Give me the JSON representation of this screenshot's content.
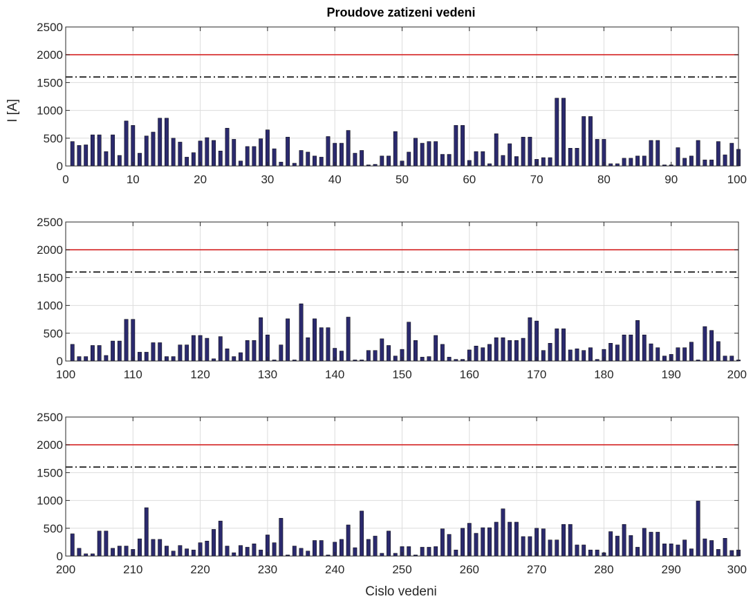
{
  "chart_data": {
    "type": "bar",
    "title": "Proudove zatizeni vedeni",
    "ylabel": "I [A]",
    "xlabel": "Cislo vedeni",
    "grid": true,
    "bar_color": "#2b2a6e",
    "reference_lines": [
      {
        "value": 2000,
        "style": "solid",
        "color": "#d42222"
      },
      {
        "value": 1600,
        "style": "dash-dot",
        "color": "#000000"
      }
    ],
    "panels": [
      {
        "xlim": [
          0,
          100
        ],
        "ylim": [
          0,
          2500
        ],
        "xticks": [
          "0",
          "10",
          "20",
          "30",
          "40",
          "50",
          "60",
          "70",
          "80",
          "90",
          "100"
        ],
        "yticks": [
          "0",
          "500",
          "1000",
          "1500",
          "2000",
          "2500"
        ],
        "x_start": 1,
        "values": [
          440,
          370,
          380,
          560,
          560,
          260,
          560,
          190,
          810,
          730,
          230,
          540,
          610,
          860,
          860,
          500,
          430,
          160,
          240,
          450,
          510,
          460,
          270,
          680,
          480,
          90,
          350,
          350,
          490,
          650,
          310,
          70,
          520,
          50,
          280,
          250,
          180,
          160,
          530,
          410,
          410,
          640,
          230,
          280,
          20,
          30,
          180,
          180,
          620,
          90,
          250,
          500,
          410,
          440,
          440,
          210,
          210,
          730,
          730,
          100,
          260,
          260,
          40,
          580,
          190,
          400,
          170,
          520,
          520,
          120,
          150,
          150,
          1220,
          1220,
          320,
          320,
          890,
          890,
          480,
          480,
          40,
          40,
          140,
          140,
          180,
          180,
          460,
          460,
          20,
          20,
          330,
          140,
          180,
          460,
          110,
          110,
          440,
          200,
          410,
          300
        ]
      },
      {
        "xlim": [
          100,
          200
        ],
        "ylim": [
          0,
          2500
        ],
        "xticks": [
          "100",
          "110",
          "120",
          "130",
          "140",
          "150",
          "160",
          "170",
          "180",
          "190",
          "200"
        ],
        "yticks": [
          "0",
          "500",
          "1000",
          "1500",
          "2000",
          "2500"
        ],
        "x_start": 101,
        "values": [
          300,
          80,
          80,
          280,
          280,
          100,
          360,
          360,
          750,
          750,
          160,
          160,
          330,
          330,
          80,
          80,
          290,
          290,
          460,
          460,
          410,
          40,
          440,
          220,
          80,
          150,
          370,
          370,
          780,
          470,
          20,
          290,
          760,
          20,
          1030,
          420,
          760,
          600,
          600,
          230,
          180,
          790,
          20,
          20,
          190,
          190,
          400,
          280,
          90,
          210,
          700,
          370,
          70,
          80,
          460,
          300,
          70,
          30,
          30,
          200,
          270,
          240,
          300,
          420,
          420,
          370,
          370,
          410,
          780,
          720,
          190,
          320,
          580,
          580,
          200,
          220,
          190,
          240,
          30,
          210,
          320,
          290,
          470,
          470,
          730,
          470,
          310,
          240,
          90,
          120,
          240,
          240,
          340,
          20,
          620,
          550,
          350,
          90,
          90,
          20
        ]
      },
      {
        "xlim": [
          200,
          300
        ],
        "ylim": [
          0,
          2500
        ],
        "xticks": [
          "200",
          "210",
          "220",
          "230",
          "240",
          "250",
          "260",
          "270",
          "280",
          "290",
          "300"
        ],
        "yticks": [
          "0",
          "500",
          "1000",
          "1500",
          "2000",
          "2500"
        ],
        "x_start": 201,
        "values": [
          400,
          140,
          40,
          40,
          450,
          450,
          140,
          180,
          180,
          120,
          310,
          870,
          300,
          300,
          180,
          90,
          190,
          130,
          110,
          240,
          270,
          480,
          630,
          180,
          60,
          190,
          160,
          220,
          110,
          380,
          240,
          680,
          20,
          180,
          140,
          90,
          280,
          280,
          20,
          250,
          300,
          560,
          150,
          810,
          300,
          360,
          50,
          450,
          50,
          170,
          170,
          20,
          160,
          160,
          170,
          490,
          390,
          110,
          500,
          590,
          410,
          510,
          510,
          610,
          850,
          610,
          610,
          350,
          350,
          500,
          490,
          290,
          290,
          570,
          570,
          200,
          200,
          110,
          110,
          60,
          440,
          360,
          570,
          370,
          160,
          500,
          430,
          430,
          220,
          220,
          200,
          290,
          130,
          990,
          310,
          280,
          120,
          320,
          100,
          110
        ]
      }
    ]
  }
}
